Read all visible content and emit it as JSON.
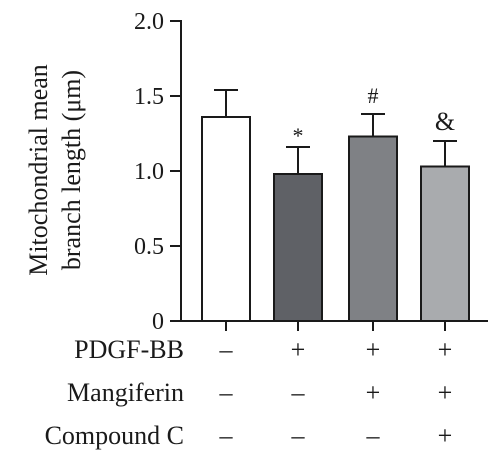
{
  "chart_data": {
    "type": "bar",
    "ylabel_line1": "Mitochondrial mean",
    "ylabel_line2": "branch length (μm)",
    "ylim": [
      0,
      2.0
    ],
    "yticks": [
      {
        "value": 0,
        "label": "0"
      },
      {
        "value": 0.5,
        "label": "0.5"
      },
      {
        "value": 1.0,
        "label": "1.0"
      },
      {
        "value": 1.5,
        "label": "1.5"
      },
      {
        "value": 2.0,
        "label": "2.0"
      }
    ],
    "bars": [
      {
        "value": 1.36,
        "error": 0.18,
        "marker": "",
        "color": "#ffffff"
      },
      {
        "value": 0.98,
        "error": 0.18,
        "marker": "*",
        "color": "#5f6166"
      },
      {
        "value": 1.23,
        "error": 0.15,
        "marker": "#",
        "color": "#7f8185"
      },
      {
        "value": 1.03,
        "error": 0.17,
        "marker": "&",
        "color": "#a9abae"
      }
    ],
    "conditions": [
      {
        "label": "PDGF-BB",
        "signs": [
          "–",
          "+",
          "+",
          "+"
        ]
      },
      {
        "label": "Mangiferin",
        "signs": [
          "–",
          "–",
          "+",
          "+"
        ]
      },
      {
        "label": "Compound C",
        "signs": [
          "–",
          "–",
          "–",
          "+"
        ]
      }
    ]
  }
}
